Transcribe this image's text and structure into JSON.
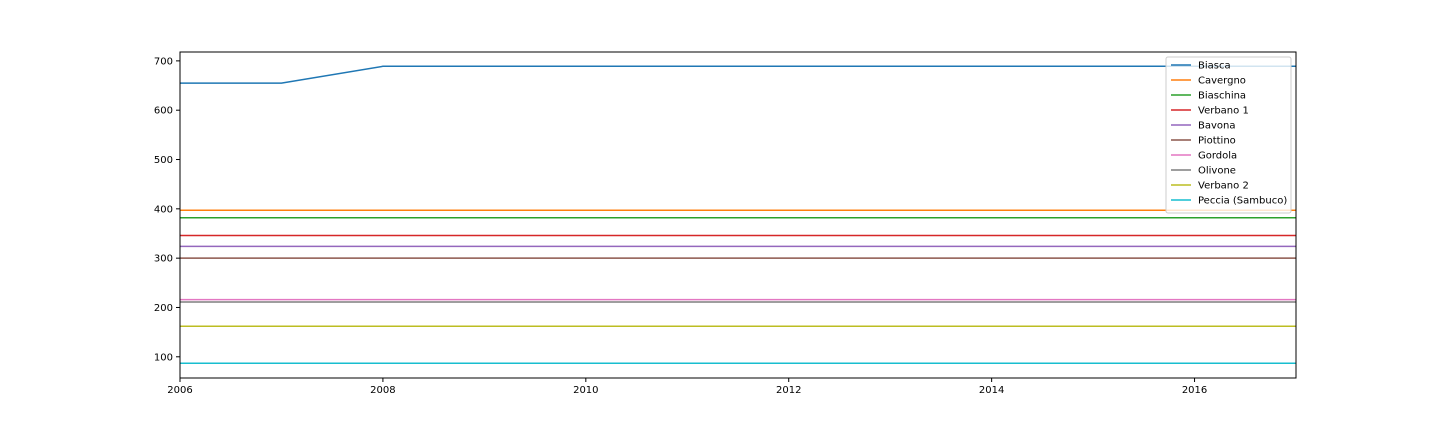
{
  "chart_data": {
    "type": "line",
    "title": "",
    "xlabel": "",
    "ylabel": "",
    "xlim": [
      2006,
      2017
    ],
    "ylim": [
      57,
      718
    ],
    "x_ticks": [
      2006,
      2008,
      2010,
      2012,
      2014,
      2016
    ],
    "y_ticks": [
      100,
      200,
      300,
      400,
      500,
      600,
      700
    ],
    "grid": false,
    "legend_position": "top-right",
    "x": [
      2006,
      2007,
      2008,
      2009,
      2010,
      2011,
      2012,
      2013,
      2014,
      2015,
      2016,
      2017
    ],
    "series": [
      {
        "name": "Biasca",
        "color": "#1f77b4",
        "values": [
          655,
          655,
          689,
          689,
          689,
          689,
          689,
          689,
          689,
          689,
          689,
          689
        ]
      },
      {
        "name": "Cavergno",
        "color": "#ff7f0e",
        "values": [
          397,
          397,
          397,
          397,
          397,
          397,
          397,
          397,
          397,
          397,
          397,
          397
        ]
      },
      {
        "name": "Biaschina",
        "color": "#2ca02c",
        "values": [
          382,
          382,
          382,
          382,
          382,
          382,
          382,
          382,
          382,
          382,
          382,
          382
        ]
      },
      {
        "name": "Verbano 1",
        "color": "#d62728",
        "values": [
          346,
          346,
          346,
          346,
          346,
          346,
          346,
          346,
          346,
          346,
          346,
          346
        ]
      },
      {
        "name": "Bavona",
        "color": "#9467bd",
        "values": [
          324,
          324,
          324,
          324,
          324,
          324,
          324,
          324,
          324,
          324,
          324,
          324
        ]
      },
      {
        "name": "Piottino",
        "color": "#8c564b",
        "values": [
          300,
          300,
          300,
          300,
          300,
          300,
          300,
          300,
          300,
          300,
          300,
          300
        ]
      },
      {
        "name": "Gordola",
        "color": "#e377c2",
        "values": [
          216,
          216,
          216,
          216,
          216,
          216,
          216,
          216,
          216,
          216,
          216,
          216
        ]
      },
      {
        "name": "Olivone",
        "color": "#7f7f7f",
        "values": [
          211,
          211,
          211,
          211,
          211,
          211,
          211,
          211,
          211,
          211,
          211,
          211
        ]
      },
      {
        "name": "Verbano 2",
        "color": "#bcbd22",
        "values": [
          162,
          162,
          162,
          162,
          162,
          162,
          162,
          162,
          162,
          162,
          162,
          162
        ]
      },
      {
        "name": "Peccia (Sambuco)",
        "color": "#17becf",
        "values": [
          87,
          87,
          87,
          87,
          87,
          87,
          87,
          87,
          87,
          87,
          87,
          87
        ]
      }
    ]
  }
}
